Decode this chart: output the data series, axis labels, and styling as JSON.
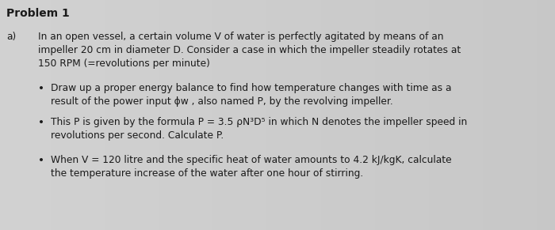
{
  "background_color": "#c8c8c8",
  "title": "Problem 1",
  "title_fontsize": 10,
  "title_fontweight": "bold",
  "part_label": "a)",
  "part_text_line1": "In an open vessel, a certain volume V of water is perfectly agitated by means of an",
  "part_text_line2": "impeller 20 cm in diameter D. Consider a case in which the impeller steadily rotates at",
  "part_text_line3": "150 RPM (=revolutions per minute)",
  "bullet1_line1": "Draw up a proper energy balance to find how temperature changes with time as a",
  "bullet1_line2": "result of the power input ϕw , also named P, by the revolving impeller.",
  "bullet2_line1": "This P is given by the formula P = 3.5 ρN³D⁵ in which N denotes the impeller speed in",
  "bullet2_line2": "revolutions per second. Calculate P.",
  "bullet3_line1": "When V = 120 litre and the specific heat of water amounts to 4.2 kJ/kgK, calculate",
  "bullet3_line2": "the temperature increase of the water after one hour of stirring.",
  "font_size": 8.8,
  "text_color": "#1a1a1a",
  "fig_width": 7.0,
  "fig_height": 2.91,
  "dpi": 100
}
